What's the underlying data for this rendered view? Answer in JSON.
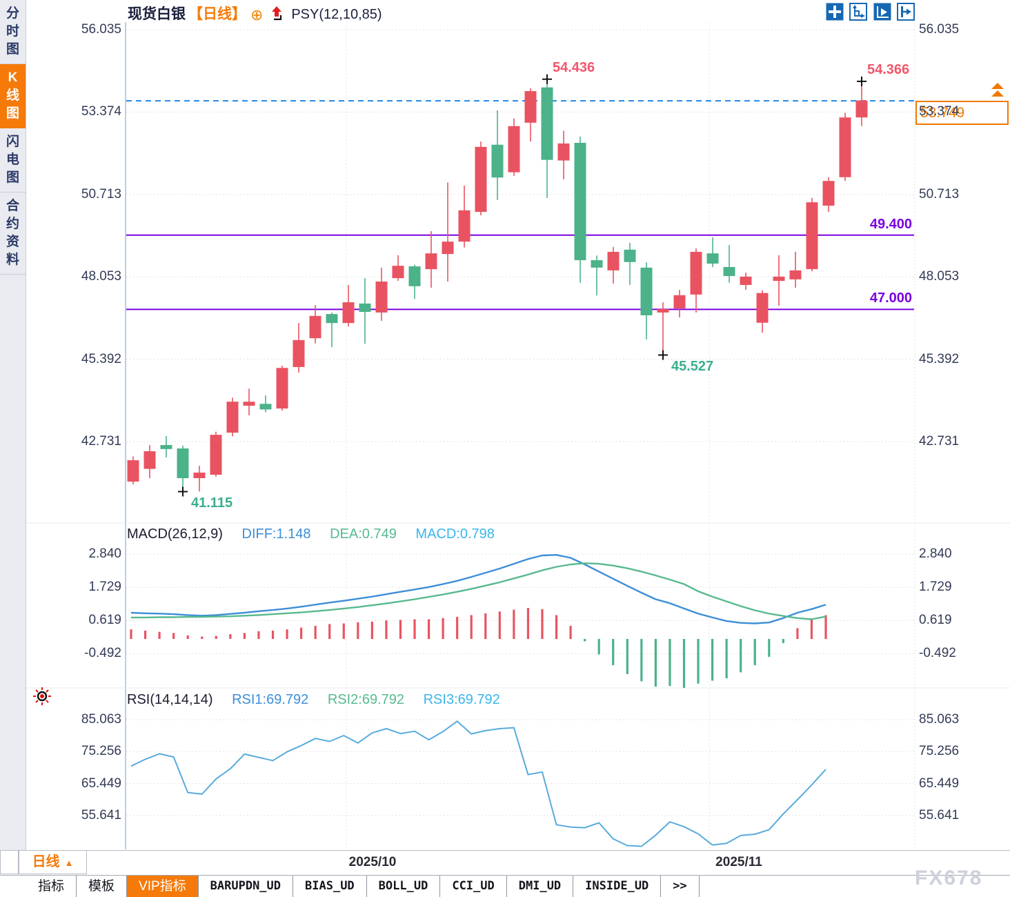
{
  "sidebar": {
    "tabs": [
      {
        "label": "分时图",
        "active": false
      },
      {
        "label": "K线图",
        "active": true
      },
      {
        "label": "闪电图",
        "active": false
      },
      {
        "label": "合约资料",
        "active": false
      }
    ]
  },
  "header": {
    "symbol": "现货白银",
    "period_tag": "【日线】",
    "target_icon_glyph": "⊕",
    "indicator": "PSY(12,10,85)"
  },
  "toolbar": {
    "icons": [
      "move-icon",
      "axes-range-icon",
      "axes-play-icon",
      "collapse-right-icon"
    ]
  },
  "price_tag": {
    "value": "53.749",
    "color": "#f07800"
  },
  "bottom": {
    "period_button": "日线",
    "period_arrow": "▲",
    "dates": [
      "2025/10",
      "2025/11"
    ],
    "tabs": [
      {
        "label": "指标",
        "active": false
      },
      {
        "label": "模板",
        "active": false
      },
      {
        "label": "VIP指标",
        "active": true
      },
      {
        "label": "BARUPDN_UD",
        "active": false
      },
      {
        "label": "BIAS_UD",
        "active": false
      },
      {
        "label": "BOLL_UD",
        "active": false
      },
      {
        "label": "CCI_UD",
        "active": false
      },
      {
        "label": "DMI_UD",
        "active": false
      },
      {
        "label": "INSIDE_UD",
        "active": false
      },
      {
        "label": ">>",
        "active": false
      }
    ],
    "watermark": "FX678"
  },
  "macd_header": {
    "title": "MACD(26,12,9)",
    "diff": "DIFF:1.148",
    "dea": "DEA:0.749",
    "macd": "MACD:0.798"
  },
  "rsi_header": {
    "title": "RSI(14,14,14)",
    "rsi1": "RSI1:69.792",
    "rsi2": "RSI2:69.792",
    "rsi3": "RSI3:69.792"
  },
  "chart_data": [
    {
      "type": "candlestick",
      "title": "现货白银 日线",
      "y_ticks": [
        "56.035",
        "53.374",
        "50.713",
        "48.053",
        "45.392",
        "42.731"
      ],
      "y_tick_values": [
        56.035,
        53.374,
        50.713,
        48.053,
        45.392,
        42.731
      ],
      "x_dates": [
        "2025/10",
        "2025/11"
      ],
      "up_color": "#e95361",
      "down_color": "#4bb289",
      "ohlc": [
        [
          41.44,
          42.13,
          42.25,
          41.35
        ],
        [
          41.85,
          42.42,
          42.62,
          41.55
        ],
        [
          42.62,
          42.49,
          42.91,
          42.22
        ],
        [
          42.51,
          41.55,
          42.6,
          41.115
        ],
        [
          41.55,
          41.73,
          41.95,
          41.12
        ],
        [
          41.66,
          42.95,
          43.05,
          41.6
        ],
        [
          43.02,
          44.02,
          44.15,
          42.9
        ],
        [
          43.89,
          44.02,
          44.44,
          43.58
        ],
        [
          43.95,
          43.77,
          44.22,
          43.68
        ],
        [
          43.8,
          45.11,
          45.18,
          43.73
        ],
        [
          45.14,
          46.01,
          46.56,
          44.96
        ],
        [
          46.07,
          46.79,
          47.14,
          45.9
        ],
        [
          46.85,
          46.56,
          46.9,
          45.78
        ],
        [
          46.56,
          47.23,
          47.79,
          46.45
        ],
        [
          47.19,
          46.92,
          48.01,
          45.89
        ],
        [
          46.9,
          47.9,
          48.35,
          46.63
        ],
        [
          48.01,
          48.41,
          48.75,
          47.92
        ],
        [
          48.39,
          47.75,
          48.45,
          47.34
        ],
        [
          48.3,
          48.81,
          49.53,
          47.7
        ],
        [
          48.79,
          49.19,
          51.1,
          47.9
        ],
        [
          49.19,
          50.2,
          51.0,
          49.0
        ],
        [
          50.15,
          52.25,
          52.42,
          50.04
        ],
        [
          52.32,
          51.26,
          53.43,
          50.53
        ],
        [
          51.43,
          52.92,
          53.17,
          51.31
        ],
        [
          53.03,
          54.05,
          54.14,
          52.42
        ],
        [
          54.17,
          51.83,
          54.436,
          50.6
        ],
        [
          51.81,
          52.36,
          52.77,
          51.2
        ],
        [
          52.38,
          48.59,
          52.58,
          47.86
        ],
        [
          48.59,
          48.35,
          48.74,
          47.45
        ],
        [
          48.26,
          48.86,
          49.02,
          47.83
        ],
        [
          48.93,
          48.53,
          49.15,
          47.79
        ],
        [
          48.35,
          46.81,
          48.52,
          46.03
        ],
        [
          46.9,
          47.01,
          47.23,
          45.527
        ],
        [
          47.03,
          47.46,
          47.63,
          46.74
        ],
        [
          47.48,
          48.86,
          48.97,
          46.9
        ],
        [
          48.81,
          48.48,
          49.33,
          48.37
        ],
        [
          48.37,
          48.08,
          49.08,
          47.86
        ],
        [
          47.79,
          48.06,
          48.19,
          47.63
        ],
        [
          46.57,
          47.53,
          47.62,
          46.25
        ],
        [
          47.92,
          48.06,
          48.75,
          47.12
        ],
        [
          47.97,
          48.26,
          48.86,
          47.7
        ],
        [
          48.3,
          50.46,
          50.6,
          48.23
        ],
        [
          50.35,
          51.15,
          51.27,
          50.15
        ],
        [
          51.27,
          53.2,
          53.35,
          51.15
        ],
        [
          53.2,
          53.749,
          54.366,
          52.92
        ]
      ],
      "annotations": [
        {
          "text": "54.436",
          "index": 25,
          "price": 54.436,
          "placement": "above",
          "color": "#f2566b"
        },
        {
          "text": "54.366",
          "index": 44,
          "price": 54.366,
          "placement": "above",
          "color": "#f2566b"
        },
        {
          "text": "41.115",
          "index": 3,
          "price": 41.115,
          "placement": "below",
          "color": "#3aae8f"
        },
        {
          "text": "45.527",
          "index": 32,
          "price": 45.527,
          "placement": "below",
          "color": "#3aae8f"
        }
      ],
      "hlines": [
        {
          "value": 49.4,
          "label": "49.400",
          "color": "#7d00e0"
        },
        {
          "value": 47.0,
          "label": "47.000",
          "color": "#7d00e0"
        }
      ],
      "dashed_line": {
        "value": 53.749,
        "color": "#1e88e5"
      },
      "current_price": 53.749
    },
    {
      "type": "line",
      "title": "MACD(26,12,9)",
      "y_ticks": [
        "2.840",
        "1.729",
        "0.619",
        "-0.492"
      ],
      "y_tick_values": [
        2.84,
        1.729,
        0.619,
        -0.492
      ],
      "series": [
        {
          "name": "DIFF",
          "color": "#3d8ed8",
          "last": 1.148,
          "values": [
            0.88,
            0.86,
            0.85,
            0.83,
            0.8,
            0.78,
            0.8,
            0.84,
            0.88,
            0.93,
            0.97,
            1.02,
            1.08,
            1.15,
            1.22,
            1.28,
            1.35,
            1.42,
            1.5,
            1.58,
            1.66,
            1.74,
            1.84,
            1.95,
            2.08,
            2.22,
            2.36,
            2.52,
            2.68,
            2.8,
            2.82,
            2.72,
            2.5,
            2.26,
            2.02,
            1.78,
            1.55,
            1.33,
            1.2,
            1.02,
            0.85,
            0.72,
            0.6,
            0.54,
            0.52,
            0.55,
            0.7,
            0.88,
            1.0,
            1.148
          ]
        },
        {
          "name": "DEA",
          "color": "#57b98e",
          "last": 0.749,
          "values": [
            0.72,
            0.72,
            0.73,
            0.73,
            0.74,
            0.74,
            0.75,
            0.76,
            0.78,
            0.8,
            0.83,
            0.86,
            0.89,
            0.93,
            0.97,
            1.02,
            1.07,
            1.13,
            1.19,
            1.26,
            1.33,
            1.41,
            1.49,
            1.58,
            1.68,
            1.79,
            1.9,
            2.03,
            2.16,
            2.3,
            2.42,
            2.5,
            2.54,
            2.52,
            2.46,
            2.37,
            2.26,
            2.13,
            1.99,
            1.84,
            1.6,
            1.42,
            1.26,
            1.1,
            0.96,
            0.85,
            0.77,
            0.7,
            0.66,
            0.749
          ]
        }
      ],
      "histogram": {
        "name": "MACD",
        "rule": "2*(DIFF-DEA)",
        "last": 0.798,
        "up_color": "#e95361",
        "down_color": "#4bb289"
      }
    },
    {
      "type": "line",
      "title": "RSI(14,14,14)",
      "y_ticks": [
        "85.063",
        "75.256",
        "65.449",
        "55.641"
      ],
      "y_tick_values": [
        85.063,
        75.256,
        65.449,
        55.641
      ],
      "series": [
        {
          "name": "RSI1",
          "color": "#58abdc",
          "last": 69.792,
          "values": [
            70.8,
            72.9,
            74.6,
            73.6,
            62.7,
            62.2,
            66.9,
            70.0,
            74.5,
            73.5,
            72.5,
            75.2,
            77.1,
            79.3,
            78.4,
            80.2,
            77.9,
            81.0,
            82.3,
            80.8,
            81.5,
            78.9,
            81.4,
            84.6,
            80.7,
            81.7,
            82.3,
            82.6,
            68.2,
            69.0,
            52.8,
            52.1,
            51.9,
            53.4,
            48.5,
            46.4,
            46.2,
            49.6,
            53.7,
            52.2,
            50.0,
            46.6,
            47.1,
            49.5,
            49.9,
            51.3,
            56.1,
            60.5,
            65.0,
            69.792
          ]
        }
      ]
    }
  ]
}
